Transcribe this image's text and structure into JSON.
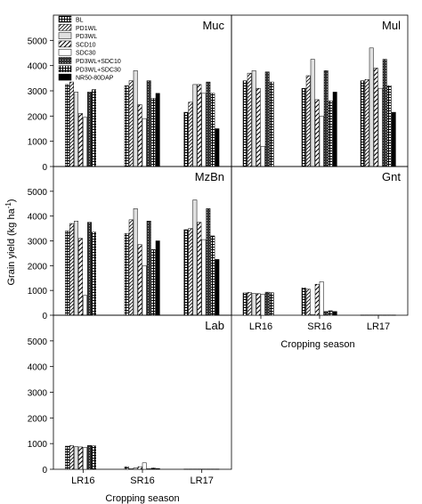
{
  "figure": {
    "ylabel": "Grain yield (kg ha",
    "ylabel_sup": "-1",
    "ylabel_close": ")",
    "xlabel": "Cropping season"
  },
  "chart_data": {
    "type": "bar",
    "categories": [
      "LR16",
      "SR16",
      "LR17"
    ],
    "ylim": [
      0,
      6000
    ],
    "yticks": [
      0,
      1000,
      2000,
      3000,
      4000,
      5000
    ],
    "xlabel": "Cropping season",
    "ylabel": "Grain yield (kg ha-1)",
    "legend_placement": "top-left of first panel",
    "series_names": [
      "BL",
      "PD1WL",
      "PD3WL",
      "SCD10",
      "SDC30",
      "PD3WL+SDC10",
      "PD3WL+SDC30",
      "NR50-80DAP"
    ],
    "panels": [
      {
        "title": "Muc",
        "values": [
          [
            3250,
            3350,
            2950,
            2100,
            1950,
            2950,
            3050,
            null
          ],
          [
            3200,
            3400,
            3800,
            2450,
            1900,
            3400,
            2700,
            2900
          ],
          [
            2150,
            2550,
            3250,
            3250,
            2900,
            3350,
            2900,
            1500
          ]
        ]
      },
      {
        "title": "Mul",
        "values": [
          [
            3400,
            3700,
            3800,
            3100,
            800,
            3750,
            3350,
            null
          ],
          [
            3100,
            3600,
            4250,
            2650,
            2000,
            3800,
            2600,
            2950
          ],
          [
            3400,
            3450,
            4700,
            3900,
            3100,
            4250,
            3200,
            2150
          ]
        ]
      },
      {
        "title": "MzBn",
        "values": [
          [
            3400,
            3700,
            3800,
            3100,
            800,
            3750,
            3350,
            null
          ],
          [
            3300,
            3850,
            4300,
            2850,
            2000,
            3800,
            2650,
            3000
          ],
          [
            3450,
            3500,
            4650,
            3750,
            3050,
            4300,
            3200,
            2250
          ]
        ]
      },
      {
        "title": "Gnt",
        "values": [
          [
            900,
            920,
            880,
            870,
            850,
            930,
            910,
            null
          ],
          [
            1100,
            1050,
            30,
            1250,
            1350,
            150,
            180,
            150
          ],
          [
            10,
            10,
            10,
            10,
            10,
            10,
            10,
            10
          ]
        ]
      },
      {
        "title": "Lab",
        "values": [
          [
            900,
            920,
            880,
            870,
            850,
            930,
            910,
            null
          ],
          [
            100,
            20,
            60,
            100,
            250,
            20,
            50,
            30
          ],
          [
            10,
            10,
            10,
            10,
            10,
            10,
            10,
            10
          ]
        ]
      }
    ]
  }
}
